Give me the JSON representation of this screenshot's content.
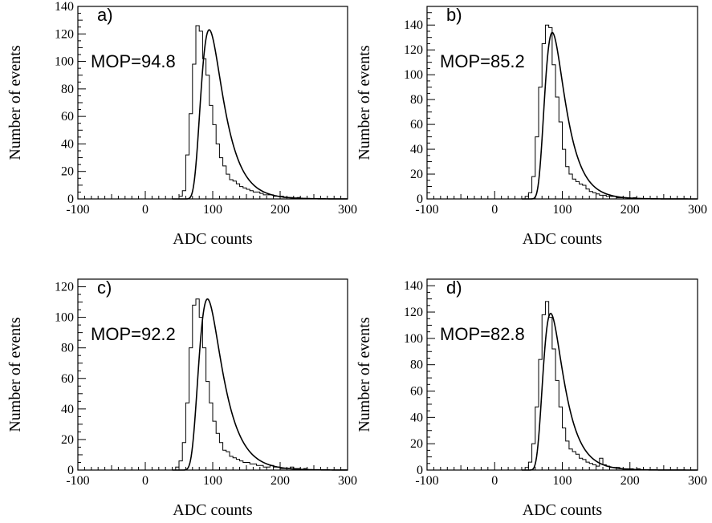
{
  "chart_data": [
    {
      "type": "bar",
      "style": "histogram with fitted curve",
      "panel_label": "a)",
      "annotation": "MOP=94.8",
      "mop": 94.8,
      "xlabel": "ADC counts",
      "ylabel": "Number of events",
      "xlim": [
        -100,
        300
      ],
      "ylim": [
        0,
        140
      ],
      "xticks": [
        -100,
        0,
        100,
        200,
        300
      ],
      "xtick_labels": [
        "-100",
        "0",
        "100",
        "200",
        "300"
      ],
      "yticks": [
        0,
        20,
        40,
        60,
        80,
        100,
        120,
        140
      ],
      "ytick_labels": [
        "0",
        "20",
        "40",
        "60",
        "80",
        "100",
        "120",
        "140"
      ],
      "bin_width": 5,
      "bins_start": 50,
      "counts": [
        2,
        6,
        32,
        62,
        98,
        126,
        122,
        102,
        90,
        68,
        54,
        40,
        30,
        24,
        18,
        14,
        13,
        11,
        9,
        8,
        7,
        6,
        5,
        5,
        4,
        3,
        3,
        3,
        2,
        2,
        2,
        1,
        1,
        1,
        0,
        1,
        0,
        0,
        0,
        0,
        0,
        0,
        0,
        0,
        0,
        0,
        0,
        0,
        0,
        0
      ],
      "fit": {
        "mpv": 94.8,
        "sigma": 11.0,
        "peak": 123
      }
    },
    {
      "type": "bar",
      "style": "histogram with fitted curve",
      "panel_label": "b)",
      "annotation": "MOP=85.2",
      "mop": 85.2,
      "xlabel": "ADC counts",
      "ylabel": "Number of events",
      "xlim": [
        -100,
        300
      ],
      "ylim": [
        0,
        155
      ],
      "xticks": [
        -100,
        0,
        100,
        200,
        300
      ],
      "xtick_labels": [
        "-100",
        "0",
        "100",
        "200",
        "300"
      ],
      "yticks": [
        0,
        20,
        40,
        60,
        80,
        100,
        120,
        140
      ],
      "ytick_labels": [
        "0",
        "20",
        "40",
        "60",
        "80",
        "100",
        "120",
        "140"
      ],
      "bin_width": 5,
      "bins_start": 45,
      "counts": [
        2,
        5,
        18,
        50,
        90,
        125,
        140,
        138,
        108,
        82,
        62,
        40,
        26,
        20,
        16,
        14,
        12,
        11,
        8,
        6,
        5,
        4,
        3,
        3,
        2,
        2,
        2,
        1,
        1,
        1,
        1,
        0,
        1,
        0,
        0,
        0,
        0,
        0,
        0,
        0,
        0,
        0,
        0,
        0,
        0,
        0,
        0,
        0,
        0,
        0,
        0
      ],
      "fit": {
        "mpv": 85.2,
        "sigma": 10.0,
        "peak": 134
      }
    },
    {
      "type": "bar",
      "style": "histogram with fitted curve",
      "panel_label": "c)",
      "annotation": "MOP=92.2",
      "mop": 92.2,
      "xlabel": "ADC counts",
      "ylabel": "Number of events",
      "xlim": [
        -100,
        300
      ],
      "ylim": [
        0,
        125
      ],
      "xticks": [
        -100,
        0,
        100,
        200,
        300
      ],
      "xtick_labels": [
        "-100",
        "0",
        "100",
        "200",
        "300"
      ],
      "yticks": [
        0,
        20,
        40,
        60,
        80,
        100,
        120
      ],
      "ytick_labels": [
        "0",
        "20",
        "40",
        "60",
        "80",
        "100",
        "120"
      ],
      "bin_width": 5,
      "bins_start": 45,
      "counts": [
        2,
        6,
        18,
        44,
        80,
        108,
        112,
        100,
        80,
        58,
        44,
        32,
        24,
        18,
        13,
        12,
        9,
        8,
        7,
        6,
        5,
        5,
        4,
        4,
        3,
        3,
        2,
        2,
        3,
        2,
        2,
        1,
        1,
        1,
        2,
        1,
        1,
        0,
        1,
        0,
        0,
        0,
        0,
        0,
        0,
        0,
        0,
        0,
        0,
        0,
        0
      ],
      "fit": {
        "mpv": 92.2,
        "sigma": 11.5,
        "peak": 112
      }
    },
    {
      "type": "bar",
      "style": "histogram with fitted curve",
      "panel_label": "d)",
      "annotation": "MOP=82.8",
      "mop": 82.8,
      "xlabel": "ADC counts",
      "ylabel": "Number of events",
      "xlim": [
        -100,
        300
      ],
      "ylim": [
        0,
        145
      ],
      "xticks": [
        -100,
        0,
        100,
        200,
        300
      ],
      "xtick_labels": [
        "-100",
        "0",
        "100",
        "200",
        "300"
      ],
      "yticks": [
        0,
        20,
        40,
        60,
        80,
        100,
        120,
        140
      ],
      "ytick_labels": [
        "0",
        "20",
        "40",
        "60",
        "80",
        "100",
        "120",
        "140"
      ],
      "bin_width": 5,
      "bins_start": 45,
      "counts": [
        2,
        6,
        20,
        48,
        84,
        118,
        128,
        116,
        92,
        68,
        48,
        32,
        22,
        16,
        14,
        12,
        9,
        8,
        6,
        5,
        4,
        3,
        9,
        4,
        3,
        2,
        2,
        2,
        1,
        1,
        1,
        1,
        0,
        1,
        0,
        0,
        0,
        0,
        0,
        0,
        0,
        0,
        0,
        0,
        0,
        0,
        0,
        0,
        0,
        0,
        0
      ],
      "fit": {
        "mpv": 82.8,
        "sigma": 10.0,
        "peak": 119
      }
    }
  ]
}
